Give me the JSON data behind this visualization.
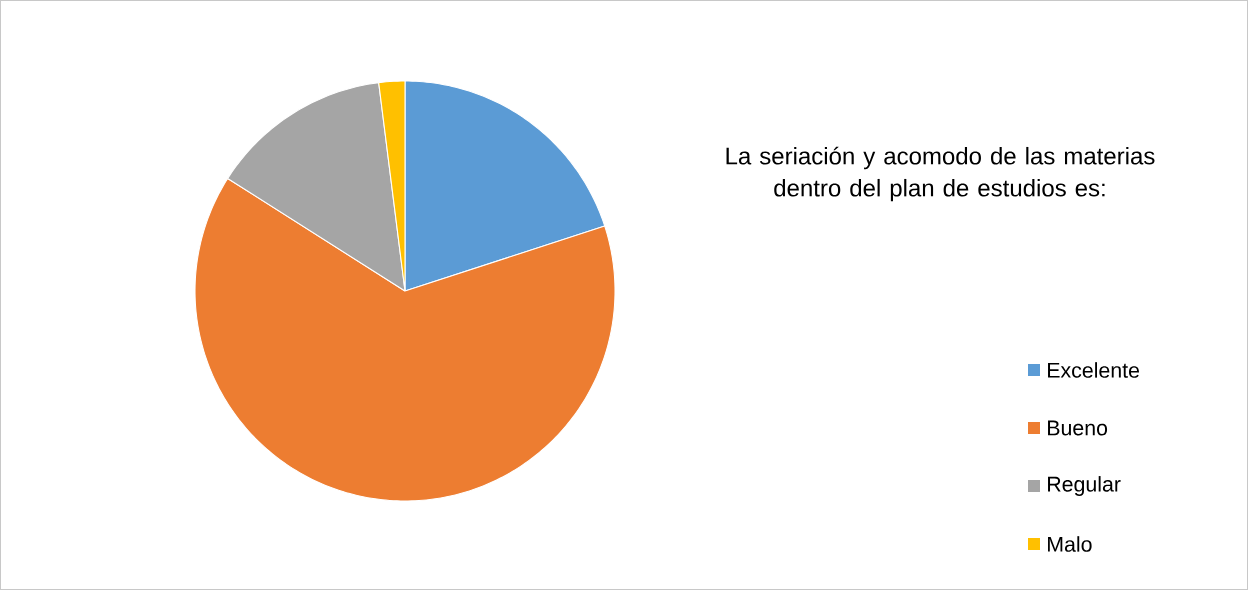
{
  "chart_data": {
    "type": "pie",
    "title": "La seriación y acomodo de las materias dentro del plan de estudios es:",
    "categories": [
      "Excelente",
      "Bueno",
      "Regular",
      "Malo"
    ],
    "values": [
      20,
      64,
      14,
      2
    ],
    "colors": [
      "#5b9bd5",
      "#ed7d31",
      "#a5a5a5",
      "#ffc000"
    ],
    "legend": "right"
  }
}
